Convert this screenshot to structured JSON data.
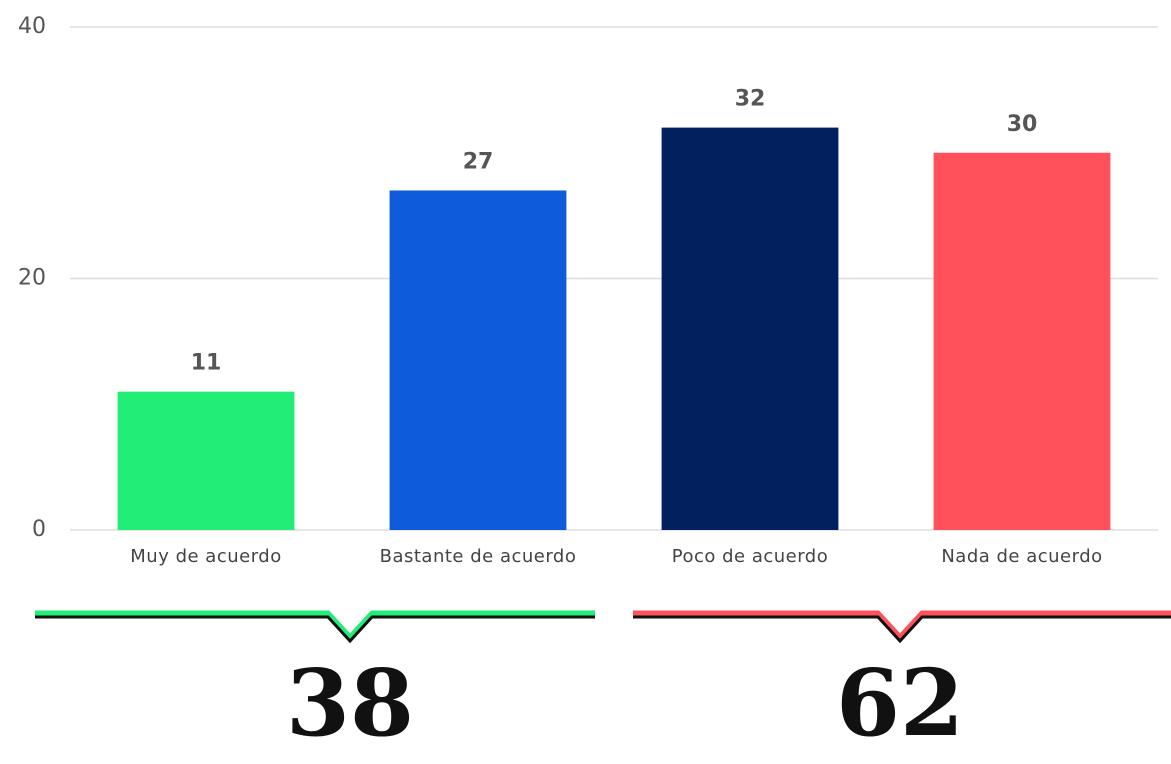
{
  "chart_data": {
    "type": "bar",
    "categories": [
      "Muy de acuerdo",
      "Bastante de acuerdo",
      "Poco de acuerdo",
      "Nada de acuerdo"
    ],
    "values": [
      11,
      27,
      32,
      30
    ],
    "colors": [
      "#22ee77",
      "#0e5bdc",
      "#03205e",
      "#ff515b"
    ],
    "ylim": [
      0,
      40
    ],
    "yticks": [
      0,
      20,
      40
    ],
    "grid": true,
    "groups": [
      {
        "total": 38,
        "color": "#22ee77"
      },
      {
        "total": 62,
        "color": "#ff515b"
      }
    ]
  }
}
